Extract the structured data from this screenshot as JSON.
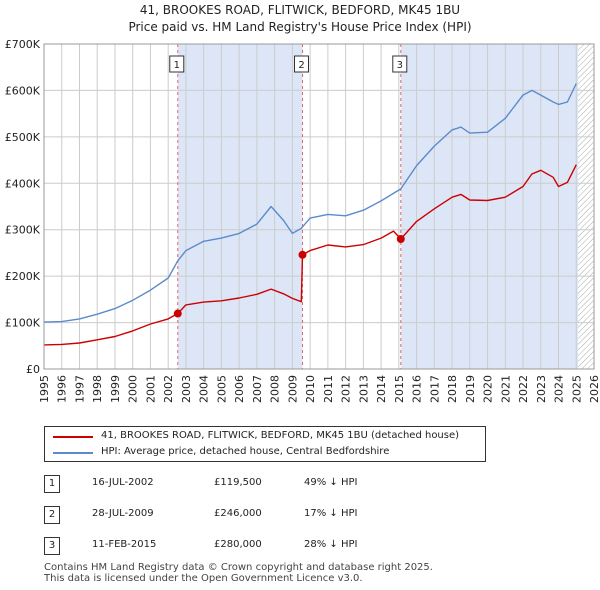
{
  "title_line1": "41, BROOKES ROAD, FLITWICK, BEDFORD, MK45 1BU",
  "title_line2": "Price paid vs. HM Land Registry's House Price Index (HPI)",
  "chart_data": {
    "type": "line",
    "title": "41, BROOKES ROAD, FLITWICK, BEDFORD, MK45 1BU — Price paid vs. HM Land Registry's House Price Index (HPI)",
    "xlabel": "",
    "ylabel": "",
    "xlim": [
      1995,
      2026
    ],
    "ylim": [
      0,
      700000
    ],
    "y_ticks": [
      {
        "value": 0,
        "label": "£0"
      },
      {
        "value": 100000,
        "label": "£100K"
      },
      {
        "value": 200000,
        "label": "£200K"
      },
      {
        "value": 300000,
        "label": "£300K"
      },
      {
        "value": 400000,
        "label": "£400K"
      },
      {
        "value": 500000,
        "label": "£500K"
      },
      {
        "value": 600000,
        "label": "£600K"
      },
      {
        "value": 700000,
        "label": "£700K"
      }
    ],
    "x_ticks": [
      "1995",
      "1996",
      "1997",
      "1998",
      "1999",
      "2000",
      "2001",
      "2002",
      "2003",
      "2004",
      "2005",
      "2006",
      "2007",
      "2008",
      "2009",
      "2010",
      "2011",
      "2012",
      "2013",
      "2014",
      "2015",
      "2016",
      "2017",
      "2018",
      "2019",
      "2020",
      "2021",
      "2022",
      "2023",
      "2024",
      "2025",
      "2026"
    ],
    "shaded_periods": [
      [
        2002.54,
        2009.57
      ],
      [
        2015.11,
        2025.1
      ]
    ],
    "future_hatch_from": 2025.1,
    "series": [
      {
        "name": "41, BROOKES ROAD, FLITWICK, BEDFORD, MK45 1BU (detached house)",
        "color": "#cc0000",
        "x": [
          1995.0,
          1996.0,
          1997.0,
          1998.0,
          1999.0,
          2000.0,
          2001.0,
          2002.0,
          2002.54,
          2003.0,
          2004.0,
          2005.0,
          2006.0,
          2007.0,
          2007.8,
          2008.5,
          2009.0,
          2009.5,
          2009.57,
          2010.0,
          2011.0,
          2012.0,
          2013.0,
          2014.0,
          2014.7,
          2015.11,
          2016.0,
          2017.0,
          2018.0,
          2018.5,
          2019.0,
          2020.0,
          2021.0,
          2022.0,
          2022.5,
          2023.0,
          2023.7,
          2024.0,
          2024.5,
          2025.0
        ],
        "values": [
          52000,
          53000,
          56000,
          63000,
          70000,
          82000,
          97000,
          108000,
          119500,
          138000,
          144000,
          147000,
          153000,
          161000,
          172000,
          162000,
          152000,
          145000,
          246000,
          255000,
          267000,
          263000,
          268000,
          282000,
          297000,
          280000,
          318000,
          345000,
          370000,
          376000,
          364000,
          363000,
          370000,
          393000,
          420000,
          428000,
          413000,
          393000,
          402000,
          440000
        ]
      },
      {
        "name": "HPI: Average price, detached house, Central Bedfordshire",
        "color": "#5b8bcc",
        "x": [
          1995.0,
          1996.0,
          1997.0,
          1998.0,
          1999.0,
          2000.0,
          2001.0,
          2002.0,
          2002.54,
          2003.0,
          2004.0,
          2005.0,
          2006.0,
          2007.0,
          2007.8,
          2008.5,
          2009.0,
          2009.5,
          2010.0,
          2011.0,
          2012.0,
          2013.0,
          2014.0,
          2015.11,
          2016.0,
          2017.0,
          2018.0,
          2018.5,
          2019.0,
          2020.0,
          2021.0,
          2022.0,
          2022.5,
          2023.0,
          2023.7,
          2024.0,
          2024.5,
          2025.0
        ],
        "values": [
          101000,
          102000,
          108000,
          118000,
          130000,
          148000,
          170000,
          196000,
          233000,
          255000,
          275000,
          282000,
          292000,
          312000,
          350000,
          320000,
          292000,
          303000,
          325000,
          333000,
          330000,
          342000,
          362000,
          388000,
          438000,
          480000,
          515000,
          521000,
          508000,
          510000,
          540000,
          590000,
          600000,
          590000,
          575000,
          570000,
          575000,
          615000
        ]
      }
    ],
    "transactions": [
      {
        "label": "1",
        "date": "16-JUL-2002",
        "x": 2002.54,
        "price": 119500,
        "price_text": "£119,500",
        "hpi_diff": "49% ↓ HPI"
      },
      {
        "label": "2",
        "date": "28-JUL-2009",
        "x": 2009.57,
        "price": 246000,
        "price_text": "£246,000",
        "hpi_diff": "17% ↓ HPI"
      },
      {
        "label": "3",
        "date": "11-FEB-2015",
        "x": 2015.11,
        "price": 280000,
        "price_text": "£280,000",
        "hpi_diff": "28% ↓ HPI"
      }
    ],
    "legend": [
      "41, BROOKES ROAD, FLITWICK, BEDFORD, MK45 1BU (detached house)",
      "HPI: Average price, detached house, Central Bedfordshire"
    ]
  },
  "legend": {
    "red_label": "41, BROOKES ROAD, FLITWICK, BEDFORD, MK45 1BU (detached house)",
    "blue_label": "HPI: Average price, detached house, Central Bedfordshire"
  },
  "table": [
    {
      "badge": "1",
      "date": "16-JUL-2002",
      "price": "£119,500",
      "diff": "49% ↓ HPI"
    },
    {
      "badge": "2",
      "date": "28-JUL-2009",
      "price": "£246,000",
      "diff": "17% ↓ HPI"
    },
    {
      "badge": "3",
      "date": "11-FEB-2015",
      "price": "£280,000",
      "diff": "28% ↓ HPI"
    }
  ],
  "footer_line1": "Contains HM Land Registry data © Crown copyright and database right 2025.",
  "footer_line2": "This data is licensed under the Open Government Licence v3.0."
}
